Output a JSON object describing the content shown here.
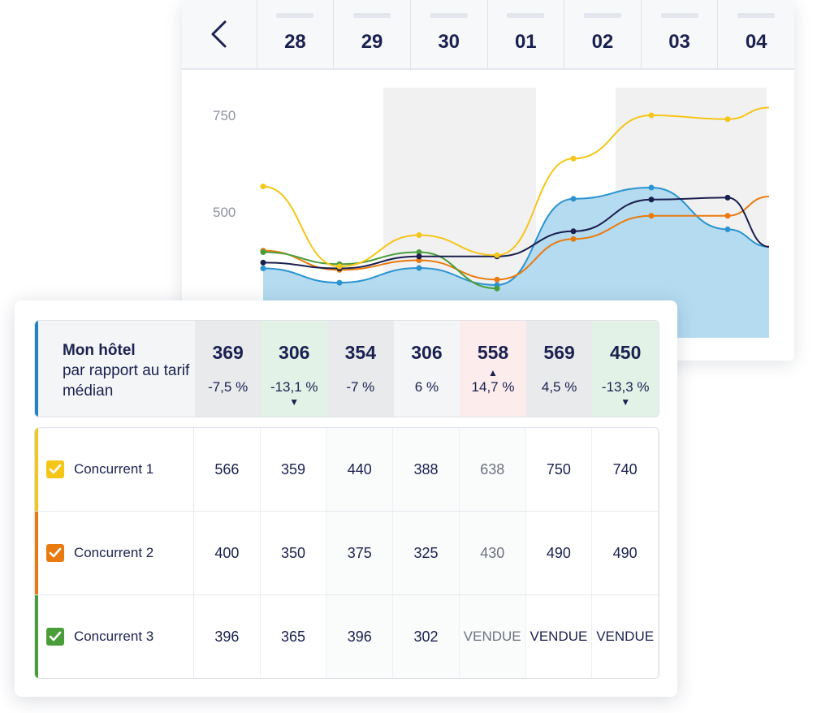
{
  "header": {
    "back_icon": "chevron-left-icon",
    "dates": [
      "28",
      "29",
      "30",
      "01",
      "02",
      "03",
      "04"
    ]
  },
  "chart_data": {
    "type": "line",
    "x": [
      "28",
      "29",
      "30",
      "01",
      "02",
      "03",
      "04"
    ],
    "yticks": [
      "750",
      "500"
    ],
    "shaded_columns": [
      "30",
      "01",
      "03",
      "04"
    ],
    "series": [
      {
        "name": "Concurrent 1",
        "color": "#f5c518",
        "values": [
          566,
          359,
          440,
          388,
          638,
          750,
          740
        ]
      },
      {
        "name": "Concurrent 2",
        "color": "#e97a10",
        "values": [
          400,
          350,
          375,
          325,
          430,
          490,
          490
        ]
      },
      {
        "name": "Concurrent 3",
        "color": "#4a9e3a",
        "values": [
          396,
          365,
          396,
          302,
          null,
          null,
          null
        ]
      },
      {
        "name": "Mon hôtel",
        "color": "#1a1f4e",
        "values": [
          369,
          354,
          385,
          385,
          450,
          532,
          537
        ]
      },
      {
        "name": "Médian",
        "color": "#2b93d0",
        "values": [
          354,
          317,
          355,
          311,
          534,
          563,
          455
        ]
      }
    ]
  },
  "my_hotel": {
    "title": "Mon hôtel",
    "subtitle": "par rapport au tarif médian",
    "accent": "#2283c6",
    "cells": [
      {
        "value": "369",
        "pct": "-7,5 %",
        "arrow": ""
      },
      {
        "value": "306",
        "pct": "-13,1 %",
        "arrow": "▼"
      },
      {
        "value": "354",
        "pct": "-7 %",
        "arrow": ""
      },
      {
        "value": "306",
        "pct": "6 %",
        "arrow": ""
      },
      {
        "value": "558",
        "pct": "14,7 %",
        "arrow": "▲"
      },
      {
        "value": "569",
        "pct": "4,5 %",
        "arrow": ""
      },
      {
        "value": "450",
        "pct": "-13,3 %",
        "arrow": "▼"
      }
    ]
  },
  "competitors": [
    {
      "name": "Concurrent 1",
      "color": "#f5c518",
      "checked": true,
      "values": [
        "566",
        "359",
        "440",
        "388",
        "638",
        "750",
        "740"
      ]
    },
    {
      "name": "Concurrent 2",
      "color": "#e97a10",
      "checked": true,
      "values": [
        "400",
        "350",
        "375",
        "325",
        "430",
        "490",
        "490"
      ]
    },
    {
      "name": "Concurrent 3",
      "color": "#4a9e3a",
      "checked": true,
      "values": [
        "396",
        "365",
        "396",
        "302",
        "VENDUE",
        "VENDUE",
        "VENDUE"
      ]
    }
  ]
}
